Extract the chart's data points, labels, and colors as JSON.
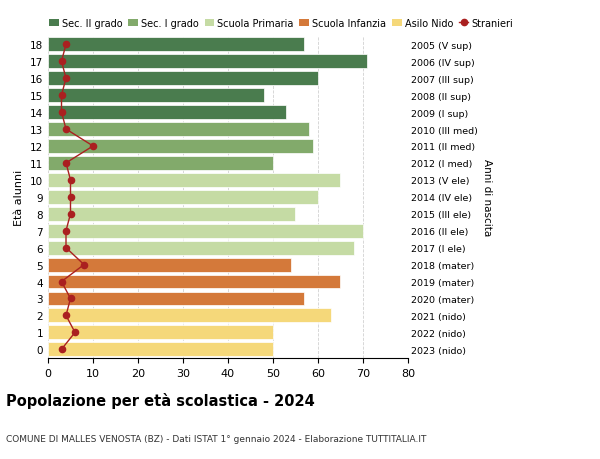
{
  "ages": [
    18,
    17,
    16,
    15,
    14,
    13,
    12,
    11,
    10,
    9,
    8,
    7,
    6,
    5,
    4,
    3,
    2,
    1,
    0
  ],
  "bar_values": [
    57,
    71,
    60,
    48,
    53,
    58,
    59,
    50,
    65,
    60,
    55,
    70,
    68,
    54,
    65,
    57,
    63,
    50,
    50
  ],
  "stranieri_values": [
    4,
    3,
    4,
    3,
    3,
    4,
    10,
    4,
    5,
    5,
    5,
    4,
    4,
    8,
    3,
    5,
    4,
    6,
    3
  ],
  "right_labels": [
    "2005 (V sup)",
    "2006 (IV sup)",
    "2007 (III sup)",
    "2008 (II sup)",
    "2009 (I sup)",
    "2010 (III med)",
    "2011 (II med)",
    "2012 (I med)",
    "2013 (V ele)",
    "2014 (IV ele)",
    "2015 (III ele)",
    "2016 (II ele)",
    "2017 (I ele)",
    "2018 (mater)",
    "2019 (mater)",
    "2020 (mater)",
    "2021 (nido)",
    "2022 (nido)",
    "2023 (nido)"
  ],
  "bar_colors_by_age": {
    "18": "#4a7c4e",
    "17": "#4a7c4e",
    "16": "#4a7c4e",
    "15": "#4a7c4e",
    "14": "#4a7c4e",
    "13": "#82aa6b",
    "12": "#82aa6b",
    "11": "#82aa6b",
    "10": "#c5dba4",
    "9": "#c5dba4",
    "8": "#c5dba4",
    "7": "#c5dba4",
    "6": "#c5dba4",
    "5": "#d4793a",
    "4": "#d4793a",
    "3": "#d4793a",
    "2": "#f5d87a",
    "1": "#f5d87a",
    "0": "#f5d87a"
  },
  "legend_labels": [
    "Sec. II grado",
    "Sec. I grado",
    "Scuola Primaria",
    "Scuola Infanzia",
    "Asilo Nido",
    "Stranieri"
  ],
  "legend_colors": [
    "#4a7c4e",
    "#82aa6b",
    "#c5dba4",
    "#d4793a",
    "#f5d87a",
    "#aa2020"
  ],
  "title": "Popolazione per età scolastica - 2024",
  "subtitle": "COMUNE DI MALLES VENOSTA (BZ) - Dati ISTAT 1° gennaio 2024 - Elaborazione TUTTITALIA.IT",
  "ylabel": "Età alunni",
  "right_ylabel": "Anni di nascita",
  "xlim": [
    0,
    80
  ],
  "stranieri_color": "#aa2020",
  "background_color": "#ffffff",
  "grid_color": "#cccccc"
}
